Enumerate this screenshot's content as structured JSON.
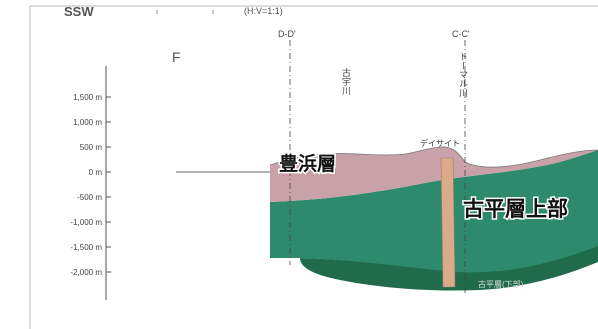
{
  "header": {
    "direction": "SSW",
    "scale_note": "(H:V=1:1)",
    "block_label": "F"
  },
  "section_lines": [
    {
      "label": "D-D'"
    },
    {
      "label": "C-C'"
    }
  ],
  "rivers": [
    {
      "label": "古宇川"
    },
    {
      "label": "トーマル川"
    }
  ],
  "elevation_axis": {
    "unit": "m",
    "ticks": [
      {
        "value": 1500,
        "label": "1,500 m"
      },
      {
        "value": 1000,
        "label": "1,000 m"
      },
      {
        "value": 500,
        "label": "500 m"
      },
      {
        "value": 0,
        "label": "0 m"
      },
      {
        "value": -500,
        "label": "-500 m"
      },
      {
        "value": -1000,
        "label": "-1,000 m"
      },
      {
        "value": -1500,
        "label": "-1,500 m"
      },
      {
        "value": -2000,
        "label": "-2,000 m"
      }
    ]
  },
  "annotations": {
    "dacite": "デイサイト",
    "deep_unit": "古平層(下部)"
  },
  "formations": [
    {
      "name": "豊浜層",
      "color": "#c9a1a8"
    },
    {
      "name": "古平層上部",
      "color": "#2e8a6c"
    }
  ],
  "colors": {
    "lower_unit": "#1f6b4c",
    "dacite_dike": "#d9ab8c",
    "axis": "#555555"
  }
}
